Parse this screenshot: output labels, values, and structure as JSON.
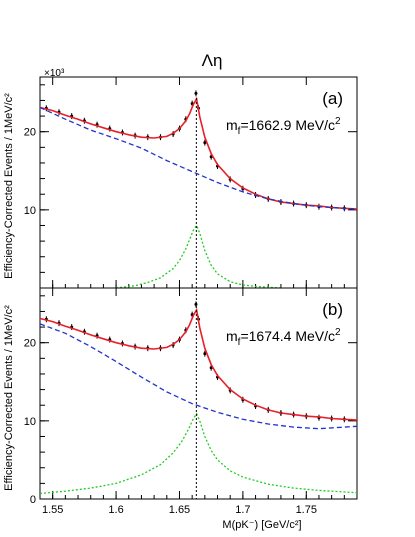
{
  "chart_data": {
    "type": "line",
    "title": "Λη",
    "xlabel": "M(pK⁻) [GeV/c²]",
    "ylabel": "Efficiency-Corrected Events / 1MeV/c²",
    "y_exponent_label": "×10³",
    "xlim": [
      1.54,
      1.79
    ],
    "x_ticks": [
      1.55,
      1.6,
      1.65,
      1.7,
      1.75
    ],
    "x_tick_labels": [
      "1.55",
      "1.6",
      "1.65",
      "1.7",
      "1.75"
    ],
    "threshold_line_x": 1.6633,
    "panels": [
      {
        "tag": "(a)",
        "mass_label": "m",
        "mass_sub": "f",
        "mass_value": "=1662.9 MeV/c",
        "mass_sup": "2",
        "ylim": [
          0,
          27
        ],
        "y_ticks": [
          10,
          20
        ],
        "y_tick_labels": [
          "10",
          "20"
        ],
        "peak_mass": 1.6629,
        "series": [
          {
            "name": "data",
            "style": "points",
            "color": "#000000",
            "x": [
              1.545,
              1.555,
              1.565,
              1.575,
              1.585,
              1.595,
              1.605,
              1.615,
              1.625,
              1.635,
              1.645,
              1.65,
              1.655,
              1.66,
              1.663,
              1.665,
              1.67,
              1.675,
              1.68,
              1.69,
              1.7,
              1.71,
              1.72,
              1.73,
              1.74,
              1.75,
              1.76,
              1.77,
              1.78
            ],
            "y": [
              23.0,
              22.5,
              22.0,
              21.4,
              20.9,
              20.4,
              19.9,
              19.5,
              19.3,
              19.3,
              19.7,
              20.4,
              21.6,
              23.6,
              24.9,
              23.0,
              18.6,
              16.8,
              15.6,
              13.9,
              12.7,
              11.9,
              11.4,
              11.0,
              10.8,
              10.6,
              10.4,
              10.3,
              10.2
            ]
          },
          {
            "name": "total fit",
            "style": "solid",
            "color": "#e8202a",
            "x": [
              1.54,
              1.55,
              1.56,
              1.57,
              1.58,
              1.59,
              1.6,
              1.61,
              1.62,
              1.63,
              1.64,
              1.645,
              1.65,
              1.655,
              1.658,
              1.661,
              1.6635,
              1.666,
              1.67,
              1.675,
              1.68,
              1.69,
              1.7,
              1.71,
              1.72,
              1.73,
              1.74,
              1.75,
              1.76,
              1.77,
              1.78,
              1.79
            ],
            "y": [
              23.1,
              22.7,
              22.1,
              21.6,
              21.0,
              20.5,
              20.0,
              19.6,
              19.3,
              19.2,
              19.4,
              19.8,
              20.4,
              21.4,
              22.3,
              23.5,
              24.2,
              21.9,
              19.3,
              17.2,
              15.8,
              14.0,
              12.8,
              12.0,
              11.4,
              11.0,
              10.8,
              10.6,
              10.5,
              10.3,
              10.2,
              10.1
            ]
          },
          {
            "name": "background",
            "style": "dashed",
            "color": "#2233cc",
            "x": [
              1.54,
              1.56,
              1.58,
              1.6,
              1.62,
              1.64,
              1.66,
              1.68,
              1.7,
              1.72,
              1.74,
              1.76,
              1.78,
              1.79
            ],
            "y": [
              23.1,
              21.6,
              20.2,
              19.1,
              17.9,
              16.3,
              14.9,
              13.5,
              12.3,
              11.4,
              10.8,
              10.4,
              10.2,
              10.1
            ]
          },
          {
            "name": "signal",
            "style": "dotted",
            "color": "#22cc22",
            "x": [
              1.6,
              1.615,
              1.625,
              1.635,
              1.645,
              1.65,
              1.655,
              1.658,
              1.661,
              1.6635,
              1.666,
              1.67,
              1.675,
              1.68,
              1.69,
              1.7,
              1.71,
              1.72,
              1.73
            ],
            "y": [
              0.0,
              0.3,
              0.7,
              1.3,
              2.5,
              3.5,
              5.0,
              6.2,
              7.4,
              8.0,
              7.0,
              4.8,
              2.9,
              1.8,
              0.8,
              0.4,
              0.2,
              0.1,
              0.0
            ]
          }
        ]
      },
      {
        "tag": "(b)",
        "mass_label": "m",
        "mass_sub": "f",
        "mass_value": "=1674.4 MeV/c",
        "mass_sup": "2",
        "ylim": [
          0,
          27
        ],
        "y_ticks": [
          0,
          10,
          20
        ],
        "y_tick_labels": [
          "0",
          "10",
          "20"
        ],
        "peak_mass": 1.6744,
        "series": [
          {
            "name": "data",
            "style": "points",
            "color": "#000000",
            "x": [
              1.545,
              1.555,
              1.565,
              1.575,
              1.585,
              1.595,
              1.605,
              1.615,
              1.625,
              1.635,
              1.645,
              1.65,
              1.655,
              1.66,
              1.663,
              1.665,
              1.67,
              1.675,
              1.68,
              1.69,
              1.7,
              1.71,
              1.72,
              1.73,
              1.74,
              1.75,
              1.76,
              1.77,
              1.78
            ],
            "y": [
              23.0,
              22.5,
              22.0,
              21.4,
              20.9,
              20.4,
              19.9,
              19.5,
              19.3,
              19.3,
              19.7,
              20.4,
              21.6,
              23.6,
              24.9,
              23.0,
              18.6,
              16.8,
              15.6,
              13.9,
              12.7,
              11.9,
              11.4,
              11.0,
              10.8,
              10.6,
              10.4,
              10.3,
              10.2
            ]
          },
          {
            "name": "total fit",
            "style": "solid",
            "color": "#e8202a",
            "x": [
              1.54,
              1.55,
              1.56,
              1.57,
              1.58,
              1.59,
              1.6,
              1.61,
              1.62,
              1.63,
              1.64,
              1.645,
              1.65,
              1.655,
              1.658,
              1.661,
              1.6635,
              1.666,
              1.67,
              1.675,
              1.68,
              1.69,
              1.7,
              1.71,
              1.72,
              1.73,
              1.74,
              1.75,
              1.76,
              1.77,
              1.78,
              1.79
            ],
            "y": [
              23.1,
              22.7,
              22.1,
              21.6,
              21.0,
              20.5,
              20.0,
              19.6,
              19.3,
              19.2,
              19.4,
              19.8,
              20.4,
              21.4,
              22.3,
              23.5,
              24.2,
              21.9,
              19.3,
              17.2,
              15.8,
              14.0,
              12.8,
              12.0,
              11.4,
              11.0,
              10.8,
              10.6,
              10.5,
              10.3,
              10.2,
              10.1
            ]
          },
          {
            "name": "background",
            "style": "dashed",
            "color": "#2233cc",
            "x": [
              1.54,
              1.56,
              1.58,
              1.6,
              1.62,
              1.64,
              1.66,
              1.68,
              1.7,
              1.72,
              1.74,
              1.76,
              1.78,
              1.79
            ],
            "y": [
              22.4,
              21.2,
              19.5,
              17.6,
              15.6,
              13.7,
              12.2,
              11.1,
              10.2,
              9.6,
              9.2,
              9.0,
              9.2,
              9.3
            ]
          },
          {
            "name": "signal",
            "style": "dotted",
            "color": "#22cc22",
            "x": [
              1.54,
              1.56,
              1.58,
              1.6,
              1.62,
              1.635,
              1.645,
              1.652,
              1.657,
              1.661,
              1.6635,
              1.666,
              1.67,
              1.675,
              1.68,
              1.69,
              1.7,
              1.72,
              1.74,
              1.76,
              1.79
            ],
            "y": [
              0.7,
              1.0,
              1.4,
              2.0,
              3.1,
              4.4,
              5.9,
              7.4,
              8.9,
              10.3,
              10.9,
              10.0,
              8.0,
              6.2,
              5.0,
              3.6,
              2.8,
              1.9,
              1.4,
              1.1,
              0.8
            ]
          }
        ]
      }
    ]
  }
}
